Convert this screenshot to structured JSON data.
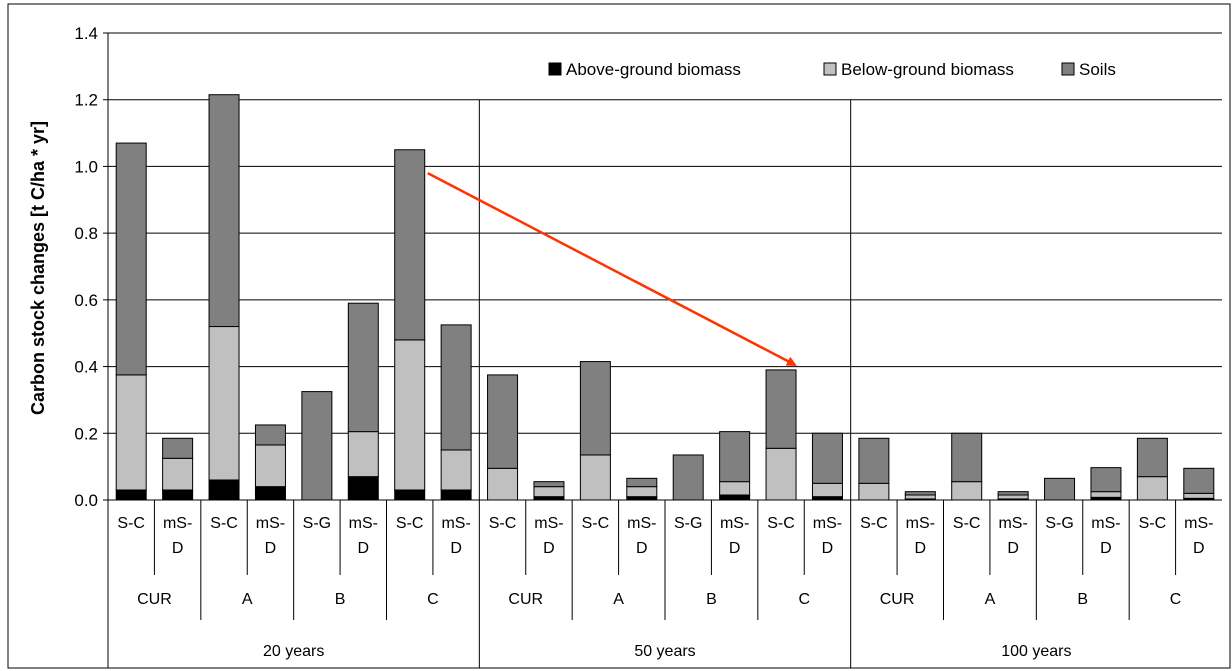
{
  "chart_data": {
    "type": "bar",
    "stacked": true,
    "ylabel": "Carbon stock changes [t C/ha * yr]",
    "ylim": [
      0,
      1.4
    ],
    "yticks": [
      "0.0",
      "0.2",
      "0.4",
      "0.6",
      "0.8",
      "1.0",
      "1.2",
      "1.4"
    ],
    "grid": true,
    "legend_position": "top-right",
    "periods": [
      {
        "label": "20 years",
        "groups": [
          "CUR",
          "A",
          "B",
          "C"
        ]
      },
      {
        "label": "50 years",
        "groups": [
          "CUR",
          "A",
          "B",
          "C"
        ]
      },
      {
        "label": "100 years",
        "groups": [
          "CUR",
          "A",
          "B",
          "C"
        ]
      }
    ],
    "categories": [
      {
        "period": 0,
        "group": 0,
        "label": [
          "S-C"
        ]
      },
      {
        "period": 0,
        "group": 0,
        "label": [
          "mS-",
          "D"
        ]
      },
      {
        "period": 0,
        "group": 1,
        "label": [
          "S-C"
        ]
      },
      {
        "period": 0,
        "group": 1,
        "label": [
          "mS-",
          "D"
        ]
      },
      {
        "period": 0,
        "group": 2,
        "label": [
          "S-G"
        ]
      },
      {
        "period": 0,
        "group": 2,
        "label": [
          "mS-",
          "D"
        ]
      },
      {
        "period": 0,
        "group": 3,
        "label": [
          "S-C"
        ]
      },
      {
        "period": 0,
        "group": 3,
        "label": [
          "mS-",
          "D"
        ]
      },
      {
        "period": 1,
        "group": 0,
        "label": [
          "S-C"
        ]
      },
      {
        "period": 1,
        "group": 0,
        "label": [
          "mS-",
          "D"
        ]
      },
      {
        "period": 1,
        "group": 1,
        "label": [
          "S-C"
        ]
      },
      {
        "period": 1,
        "group": 1,
        "label": [
          "mS-",
          "D"
        ]
      },
      {
        "period": 1,
        "group": 2,
        "label": [
          "S-G"
        ]
      },
      {
        "period": 1,
        "group": 2,
        "label": [
          "mS-",
          "D"
        ]
      },
      {
        "period": 1,
        "group": 3,
        "label": [
          "S-C"
        ]
      },
      {
        "period": 1,
        "group": 3,
        "label": [
          "mS-",
          "D"
        ]
      },
      {
        "period": 2,
        "group": 0,
        "label": [
          "S-C"
        ]
      },
      {
        "period": 2,
        "group": 0,
        "label": [
          "mS-",
          "D"
        ]
      },
      {
        "period": 2,
        "group": 1,
        "label": [
          "S-C"
        ]
      },
      {
        "period": 2,
        "group": 1,
        "label": [
          "mS-",
          "D"
        ]
      },
      {
        "period": 2,
        "group": 2,
        "label": [
          "S-G"
        ]
      },
      {
        "period": 2,
        "group": 2,
        "label": [
          "mS-",
          "D"
        ]
      },
      {
        "period": 2,
        "group": 3,
        "label": [
          "S-C"
        ]
      },
      {
        "period": 2,
        "group": 3,
        "label": [
          "mS-",
          "D"
        ]
      }
    ],
    "series": [
      {
        "name": "Above-ground biomass",
        "color": "#000000",
        "values": [
          0.03,
          0.03,
          0.06,
          0.04,
          0.0,
          0.07,
          0.03,
          0.03,
          0.0,
          0.01,
          0.0,
          0.01,
          0.0,
          0.015,
          0.0,
          0.01,
          0.0,
          0.003,
          0.0,
          0.003,
          0.0,
          0.008,
          0.0,
          0.005
        ]
      },
      {
        "name": "Below-ground biomass",
        "color": "#c0c0c0",
        "values": [
          0.345,
          0.095,
          0.46,
          0.125,
          0.0,
          0.135,
          0.45,
          0.12,
          0.095,
          0.03,
          0.135,
          0.03,
          0.0,
          0.04,
          0.155,
          0.04,
          0.05,
          0.012,
          0.055,
          0.012,
          0.0,
          0.017,
          0.07,
          0.015
        ]
      },
      {
        "name": "Soils",
        "color": "#808080",
        "values": [
          0.695,
          0.06,
          0.695,
          0.06,
          0.325,
          0.385,
          0.57,
          0.375,
          0.28,
          0.015,
          0.28,
          0.025,
          0.135,
          0.15,
          0.235,
          0.15,
          0.135,
          0.01,
          0.145,
          0.01,
          0.065,
          0.072,
          0.115,
          0.075
        ]
      }
    ],
    "annotation": {
      "type": "arrow",
      "color": "#ff3300",
      "from_bar": 6,
      "from_value": 0.98,
      "to_bar": 14,
      "to_value": 0.405
    }
  }
}
